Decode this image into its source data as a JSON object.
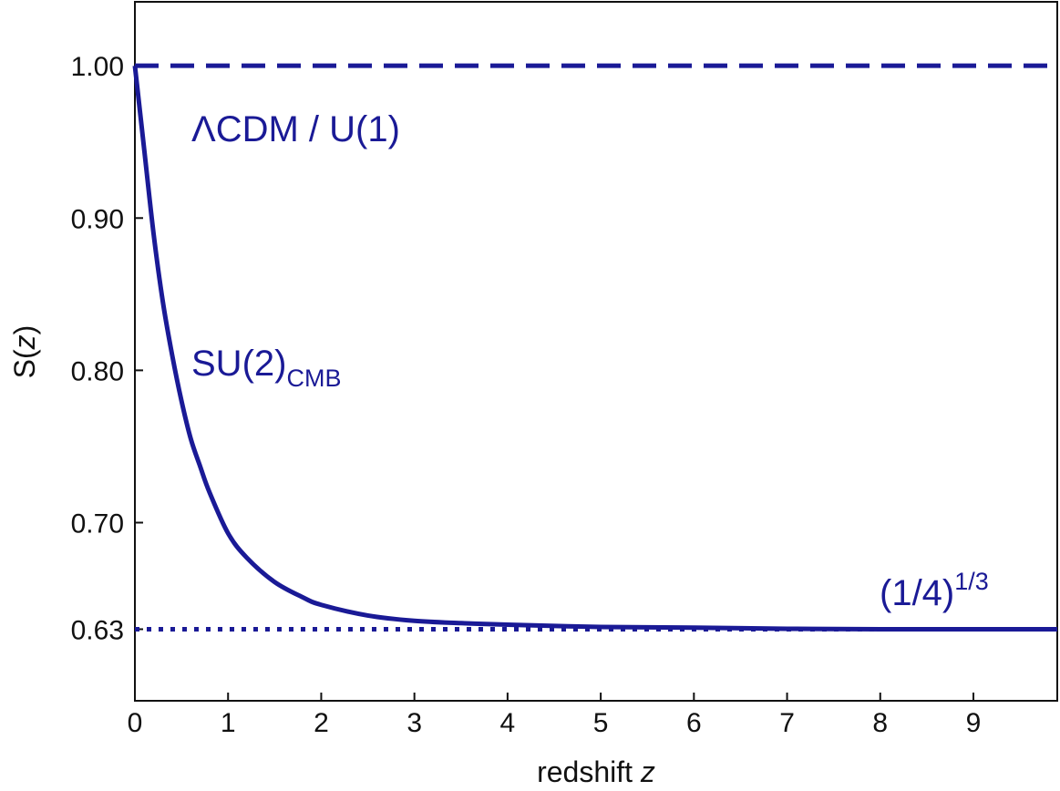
{
  "chart_data": {
    "type": "line",
    "xlabel": "redshift",
    "xlabel_var": "z",
    "ylabel": "S(",
    "ylabel_var": "z",
    "ylabel_close": ")",
    "xlim": [
      0,
      9.9
    ],
    "ylim": [
      0.583,
      1.042
    ],
    "x_ticks": [
      0,
      1,
      2,
      3,
      4,
      5,
      6,
      7,
      8,
      9
    ],
    "x_tick_labels": [
      "0",
      "1",
      "2",
      "3",
      "4",
      "5",
      "6",
      "7",
      "8",
      "9"
    ],
    "y_ticks": [
      0.63,
      0.7,
      0.8,
      0.9,
      1.0
    ],
    "y_tick_labels": [
      "0.63",
      "0.70",
      "0.80",
      "0.90",
      "1.00"
    ],
    "grid": false,
    "legend": "none",
    "color": "#1a1a96",
    "series": [
      {
        "name": "SU(2)CMB",
        "style": "solid",
        "x": [
          0,
          0.1,
          0.2,
          0.3,
          0.4,
          0.5,
          0.6,
          0.7,
          0.8,
          1.0,
          1.2,
          1.5,
          1.8,
          2.0,
          2.5,
          3.0,
          3.5,
          4.0,
          5.0,
          6.0,
          7.0,
          8.0,
          9.0,
          9.9
        ],
        "y": [
          1.0,
          0.945,
          0.89,
          0.845,
          0.81,
          0.78,
          0.755,
          0.737,
          0.72,
          0.693,
          0.677,
          0.661,
          0.651,
          0.646,
          0.639,
          0.6355,
          0.634,
          0.633,
          0.6315,
          0.631,
          0.6303,
          0.63,
          0.63,
          0.63
        ]
      },
      {
        "name": "ΛCDM / U(1)",
        "style": "dashed",
        "x": [
          0,
          9.9
        ],
        "y": [
          1.0,
          1.0
        ]
      },
      {
        "name": "(1/4)^(1/3)",
        "style": "dotted",
        "x": [
          0,
          9.9
        ],
        "y": [
          0.63,
          0.63
        ]
      }
    ],
    "annotations": {
      "lcdm": "ΛCDM / U(1)",
      "su2_main": "SU(2)",
      "su2_sub": "CMB",
      "limit_main": "(1/4)",
      "limit_sup": "1/3"
    }
  }
}
